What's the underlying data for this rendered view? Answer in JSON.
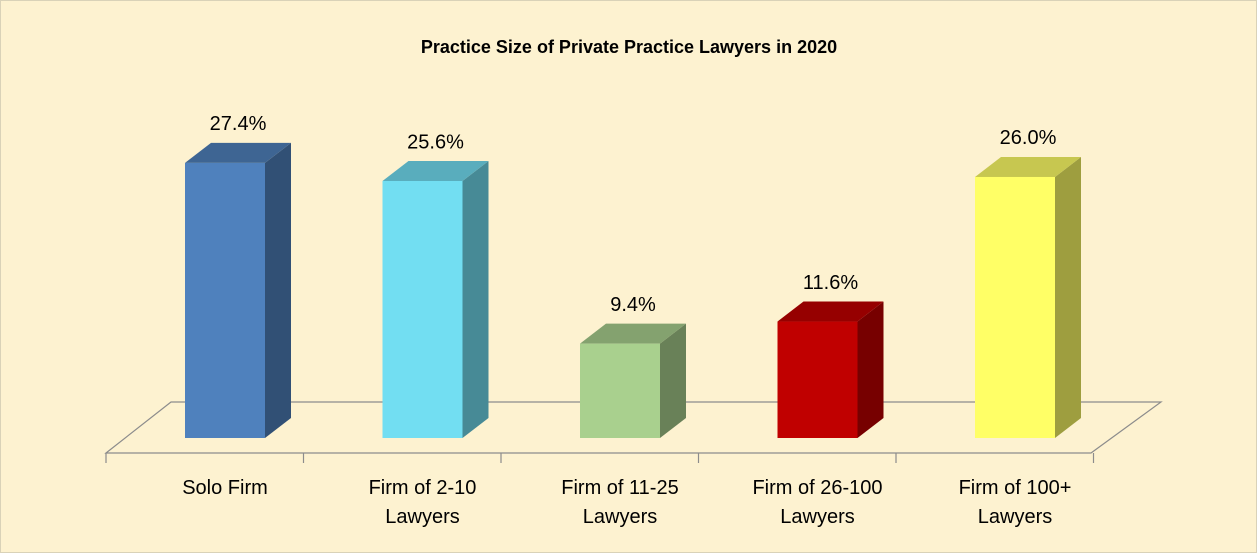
{
  "chart_data": {
    "type": "bar3d",
    "title": "Practice Size of Private Practice Lawyers in 2020",
    "categories": [
      "Solo Firm",
      "Firm of 2-10 Lawyers",
      "Firm of 11-25 Lawyers",
      "Firm of 26-100 Lawyers",
      "Firm of 100+ Lawyers"
    ],
    "values": [
      27.4,
      25.6,
      9.4,
      11.6,
      26.0
    ],
    "value_labels": [
      "27.4%",
      "25.6%",
      "9.4%",
      "11.6%",
      "26.0%"
    ],
    "colors": [
      "#4f81bd",
      "#72def2",
      "#a9d08e",
      "#c00000",
      "#ffff66"
    ]
  }
}
